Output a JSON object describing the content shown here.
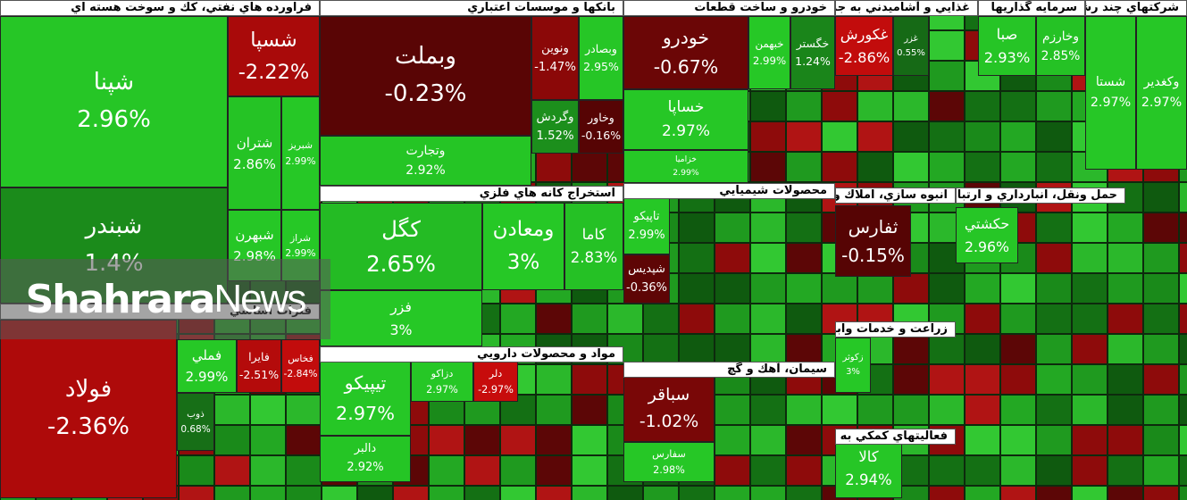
{
  "chart_data": {
    "type": "treemap",
    "sectors": [
      {
        "name": "فراورده هاي نفتي، كك و سوخت هسته اي",
        "categories": [
          "شپنا",
          "شسپا",
          "شتران",
          "شبريز",
          "شبهرن",
          "شراز",
          "شبندر"
        ],
        "values": [
          2.96,
          -2.22,
          2.86,
          2.99,
          2.98,
          2.99,
          1.4
        ],
        "value_labels": [
          "2.96%",
          "-2.22%",
          "2.86%",
          "2.99%",
          "2.98%",
          "2.99%",
          "1.4%"
        ]
      },
      {
        "name": "فلزات اساسي",
        "categories": [
          "فولاد",
          "فملي",
          "فايرا",
          "فخاس",
          "ذوب"
        ],
        "values": [
          -2.36,
          2.99,
          -2.51,
          -2.84,
          0.68
        ],
        "value_labels": [
          "-2.36%",
          "2.99%",
          "-2.51%",
          "-2.84%",
          "0.68%"
        ]
      },
      {
        "name": "بانكها و موسسات اعتباري",
        "categories": [
          "وبملت",
          "وتجارت",
          "ونوين",
          "وبصادر",
          "وگردش",
          "وخاور"
        ],
        "values": [
          -0.23,
          2.92,
          -1.47,
          2.95,
          1.52,
          -0.16
        ],
        "value_labels": [
          "-0.23%",
          "2.92%",
          "-1.47%",
          "2.95%",
          "1.52%",
          "-0.16%"
        ]
      },
      {
        "name": "استخراج كانه هاي فلزي",
        "categories": [
          "كگل",
          "ومعادن",
          "كاما",
          "فزر"
        ],
        "values": [
          2.65,
          3,
          2.83,
          3
        ],
        "value_labels": [
          "2.65%",
          "3%",
          "2.83%",
          "3%"
        ]
      },
      {
        "name": "مواد و محصولات دارويي",
        "categories": [
          "تيپيكو",
          "دالبر",
          "دزاكو",
          "دلر"
        ],
        "values": [
          2.97,
          2.92,
          2.97,
          -2.97
        ],
        "value_labels": [
          "2.97%",
          "2.92%",
          "2.97%",
          "-2.97%"
        ]
      },
      {
        "name": "خودرو و ساخت قطعات",
        "categories": [
          "خودرو",
          "خساپا",
          "خزاميا",
          "خبهمن",
          "خگستر"
        ],
        "values": [
          -0.67,
          2.97,
          2.99,
          2.99,
          1.24
        ],
        "value_labels": [
          "-0.67%",
          "2.97%",
          "2.99%",
          "2.99%",
          "1.24%"
        ]
      },
      {
        "name": "محصولات شيميايي",
        "categories": [
          "تاپيكو",
          "شپديس"
        ],
        "values": [
          2.99,
          -0.36
        ],
        "value_labels": [
          "2.99%",
          "-0.36%"
        ]
      },
      {
        "name": "سيمان، آهك و گچ",
        "categories": [
          "سباقر",
          "سفارس"
        ],
        "values": [
          -1.02,
          2.98
        ],
        "value_labels": [
          "-1.02%",
          "2.98%"
        ]
      },
      {
        "name": "غذايي و آشاميدني به جز قند و شكر",
        "categories": [
          "غكورش",
          "غزر"
        ],
        "values": [
          -2.86,
          0.55
        ],
        "value_labels": [
          "-2.86%",
          "0.55%"
        ]
      },
      {
        "name": "سرمايه گذاريها",
        "categories": [
          "صبا",
          "وخارزم"
        ],
        "values": [
          2.93,
          2.85
        ],
        "value_labels": [
          "2.93%",
          "2.85%"
        ]
      },
      {
        "name": "شركتهاي چند رشته اي صنعتي",
        "categories": [
          "شستا",
          "وكغدير"
        ],
        "values": [
          2.97,
          2.97
        ],
        "value_labels": [
          "2.97%",
          "2.97%"
        ]
      },
      {
        "name": "انبوه سازي، املاك و مستغلات",
        "categories": [
          "ثفارس"
        ],
        "values": [
          -0.15
        ],
        "value_labels": [
          "-0.15%"
        ]
      },
      {
        "name": "زراعت و خدمات وابسته",
        "categories": [
          "زكوثر"
        ],
        "values": [
          3
        ],
        "value_labels": [
          "3%"
        ]
      },
      {
        "name": "فعاليتهاي كمكي به نهادهاي مالي واسط",
        "categories": [
          "كالا"
        ],
        "values": [
          2.94
        ],
        "value_labels": [
          "2.94%"
        ]
      },
      {
        "name": "حمل ونقل، انبارداري و ارتباطات",
        "categories": [
          "حكشتي"
        ],
        "values": [
          2.96
        ],
        "value_labels": [
          "2.96%"
        ]
      }
    ]
  },
  "watermark": {
    "bold": "Shahrara",
    "light": "News"
  }
}
